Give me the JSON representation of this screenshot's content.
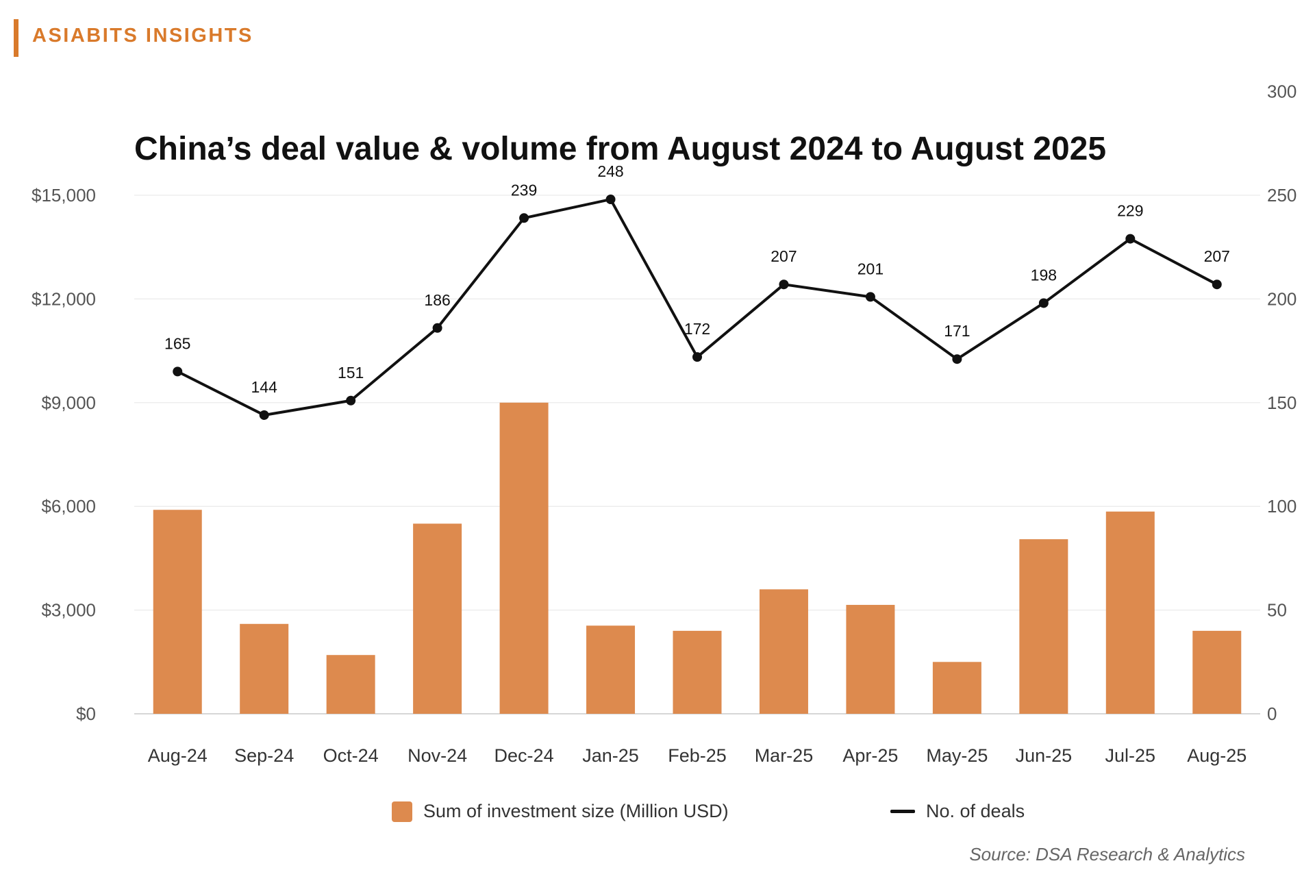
{
  "brand": {
    "label": "ASIABITS INSIGHTS",
    "color": "#d97a2b"
  },
  "source": "Source: DSA Research & Analytics",
  "chart_data": {
    "type": "bar",
    "title": "China’s deal value & volume from August 2024 to August 2025",
    "categories": [
      "Aug-24",
      "Sep-24",
      "Oct-24",
      "Nov-24",
      "Dec-24",
      "Jan-25",
      "Feb-25",
      "Mar-25",
      "Apr-25",
      "May-25",
      "Jun-25",
      "Jul-25",
      "Aug-25"
    ],
    "series": [
      {
        "name": "Sum of investment size (Million USD)",
        "type": "bar",
        "axis": "left",
        "color": "#dd8a4e",
        "values": [
          5900,
          2600,
          1700,
          5500,
          9000,
          2550,
          2400,
          3600,
          3150,
          1500,
          5050,
          5850,
          2400
        ]
      },
      {
        "name": "No. of deals",
        "type": "line",
        "axis": "right",
        "color": "#111111",
        "values": [
          165,
          144,
          151,
          186,
          239,
          248,
          172,
          207,
          201,
          171,
          198,
          229,
          207
        ],
        "point_labels": [
          "165",
          "144",
          "151",
          "186",
          "239",
          "248",
          "172",
          "207",
          "201",
          "171",
          "198",
          "229",
          "207"
        ]
      }
    ],
    "y_left": {
      "range": [
        0,
        15000
      ],
      "ticks": [
        0,
        3000,
        6000,
        9000,
        12000,
        15000
      ],
      "tick_labels": [
        "$0",
        "$3,000",
        "$6,000",
        "$9,000",
        "$12,000",
        "$15,000"
      ]
    },
    "y_right": {
      "range": [
        0,
        250
      ],
      "ticks": [
        0,
        50,
        100,
        150,
        200,
        250,
        300
      ],
      "tick_labels": [
        "0",
        "50",
        "100",
        "150",
        "200",
        "250",
        "300"
      ]
    },
    "grid": true,
    "legend_position": "bottom"
  }
}
